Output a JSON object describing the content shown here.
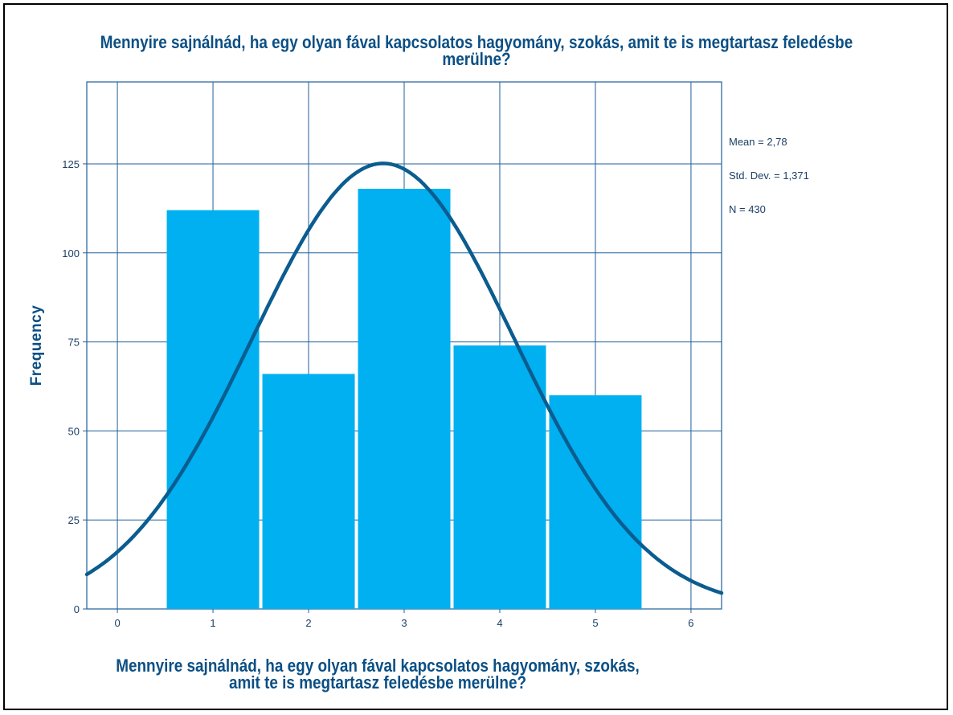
{
  "chart_data": {
    "type": "bar",
    "title": "Mennyire sajnálnád, ha egy olyan fával kapcsolatos hagyomány, szokás, amit te is megtartasz feledésbe merülne?",
    "xlabel": "Mennyire sajnálnád, ha egy olyan fával kapcsolatos hagyomány, szokás, amit te is megtartasz feledésbe merülne?",
    "ylabel": "Frequency",
    "categories": [
      1,
      2,
      3,
      4,
      5
    ],
    "values": [
      112,
      66,
      118,
      74,
      60
    ],
    "xlim": [
      -0.32,
      6.32
    ],
    "ylim": [
      0,
      148
    ],
    "xticks": [
      "0",
      "1",
      "2",
      "3",
      "4",
      "5",
      "6"
    ],
    "yticks": [
      "0",
      "25",
      "50",
      "75",
      "100",
      "125"
    ],
    "grid": true,
    "normal_curve": {
      "mean": 2.78,
      "std_dev": 1.371,
      "n": 430
    },
    "stats_text": [
      "Mean = 2,78",
      "Std. Dev. = 1,371",
      "N = 430"
    ],
    "colors": {
      "bar": "#00b0f0",
      "curve": "#0b5c8f",
      "grid": "#1f5f99",
      "text": "#0b4f84"
    }
  }
}
